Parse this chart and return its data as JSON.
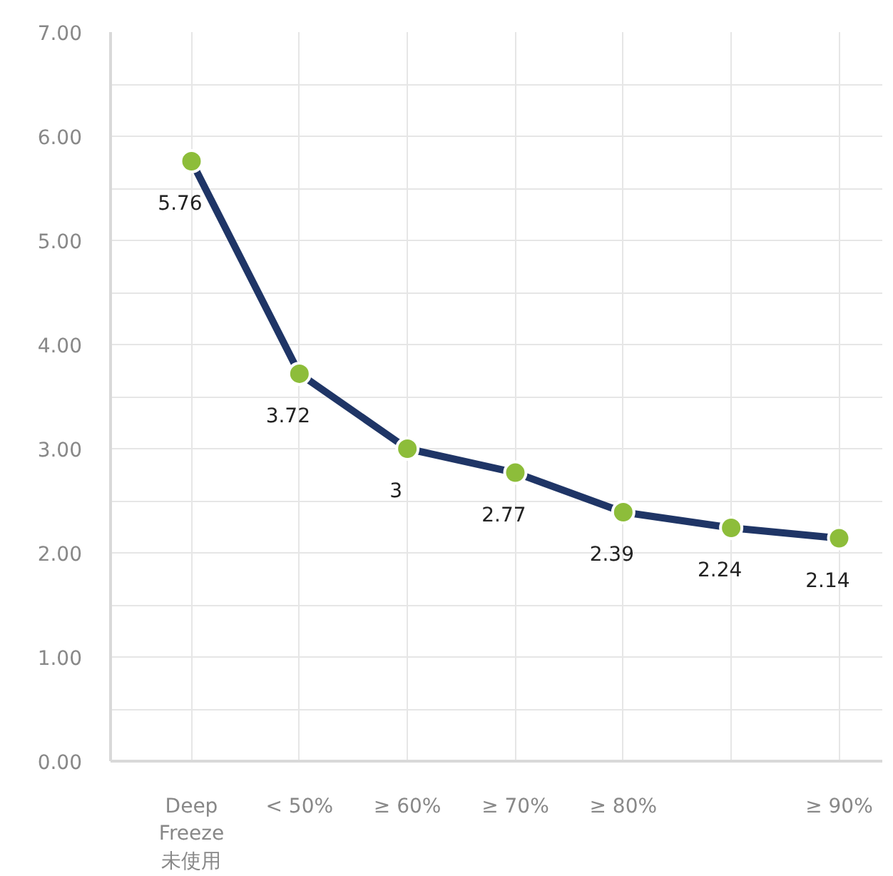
{
  "chart_data": {
    "type": "line",
    "ylim": [
      0,
      7
    ],
    "categories": [
      "Deep\nFreeze\n未使用",
      "< 50%",
      "≥ 60%",
      "≥ 70%",
      "≥ 80%",
      null,
      "≥ 90%"
    ],
    "yticks": [
      {
        "value": 0,
        "label": "0.00"
      },
      {
        "value": 0.5,
        "label": null
      },
      {
        "value": 1,
        "label": "1.00"
      },
      {
        "value": 1.5,
        "label": null
      },
      {
        "value": 2,
        "label": "2.00"
      },
      {
        "value": 2.5,
        "label": null
      },
      {
        "value": 3,
        "label": "3.00"
      },
      {
        "value": 3.5,
        "label": null
      },
      {
        "value": 4,
        "label": "4.00"
      },
      {
        "value": 4.5,
        "label": null
      },
      {
        "value": 5,
        "label": "5.00"
      },
      {
        "value": 5.5,
        "label": null
      },
      {
        "value": 6,
        "label": "6.00"
      },
      {
        "value": 6.5,
        "label": null
      },
      {
        "value": 7,
        "label": "7.00"
      }
    ],
    "grid": true,
    "marker": "circle",
    "data_labels": true,
    "series": [
      {
        "color": "#1f3566",
        "values": [
          5.76,
          3.72,
          3,
          2.77,
          2.39,
          2.24,
          2.14
        ]
      }
    ]
  }
}
